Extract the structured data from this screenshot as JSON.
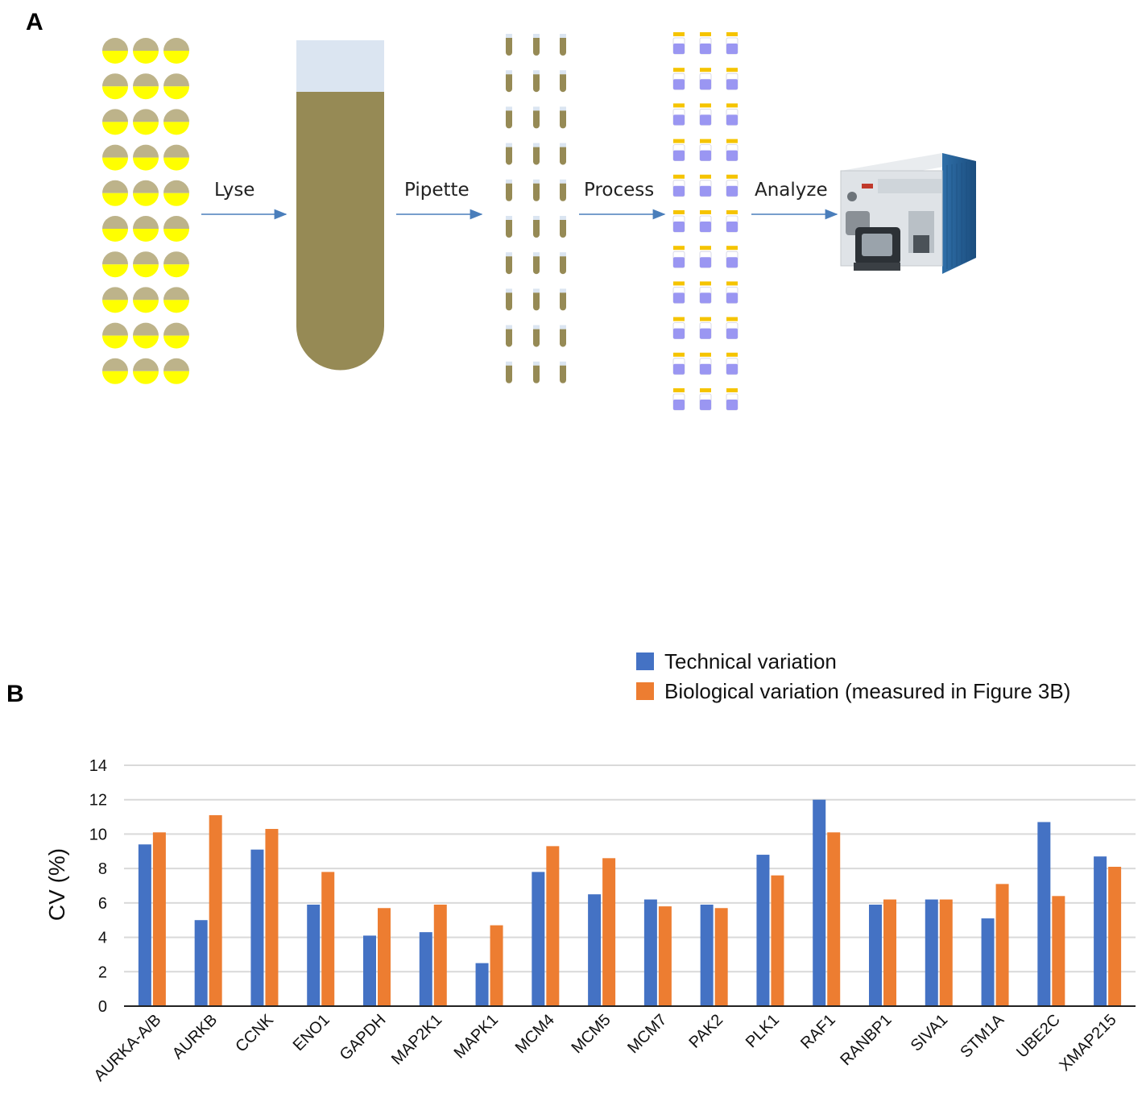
{
  "panel_a": {
    "letter": "A",
    "steps": [
      "Lyse",
      "Pipette",
      "Process",
      "Analyze"
    ],
    "colors": {
      "cell_top": "#bdb38a",
      "cell_bottom": "#ffff00",
      "lysate": "#968a55",
      "tube_cap": "#dbe5f1",
      "vial_liquid": "#9a96f2",
      "vial_cap": "#f5c400",
      "arrow": "#4a7ebb"
    },
    "icons": [
      "cell-icon",
      "tube-icon",
      "aliquot-tube-icon",
      "vial-icon",
      "mass-spectrometer-icon"
    ]
  },
  "panel_b": {
    "letter": "B",
    "legend": {
      "items": [
        {
          "label": "Technical variation",
          "color": "#4472c4"
        },
        {
          "label": "Biological variation (measured in Figure 3B)",
          "color": "#ed7d31"
        }
      ],
      "placement": "top-right"
    }
  },
  "chart_data": {
    "type": "bar",
    "title": "",
    "xlabel": "",
    "ylabel": "CV (%)",
    "ylim": [
      0,
      14
    ],
    "yticks": [
      0,
      2,
      4,
      6,
      8,
      10,
      12,
      14
    ],
    "grid": true,
    "categories": [
      "AURKA-A/B",
      "AURKB",
      "CCNK",
      "ENO1",
      "GAPDH",
      "MAP2K1",
      "MAPK1",
      "MCM4",
      "MCM5",
      "MCM7",
      "PAK2",
      "PLK1",
      "RAF1",
      "RANBP1",
      "SIVA1",
      "STM1A",
      "UBE2C",
      "XMAP215"
    ],
    "series": [
      {
        "name": "Technical variation",
        "color": "#4472c4",
        "values": [
          9.4,
          5.0,
          9.1,
          5.9,
          4.1,
          4.3,
          2.5,
          7.8,
          6.5,
          6.2,
          5.9,
          8.8,
          12.0,
          5.9,
          6.2,
          5.1,
          10.7,
          8.7
        ]
      },
      {
        "name": "Biological variation (measured in Figure 3B)",
        "color": "#ed7d31",
        "values": [
          10.1,
          11.1,
          10.3,
          7.8,
          5.7,
          5.9,
          4.7,
          9.3,
          8.6,
          5.8,
          5.7,
          7.6,
          10.1,
          6.2,
          6.2,
          7.1,
          6.4,
          8.1
        ]
      }
    ]
  }
}
